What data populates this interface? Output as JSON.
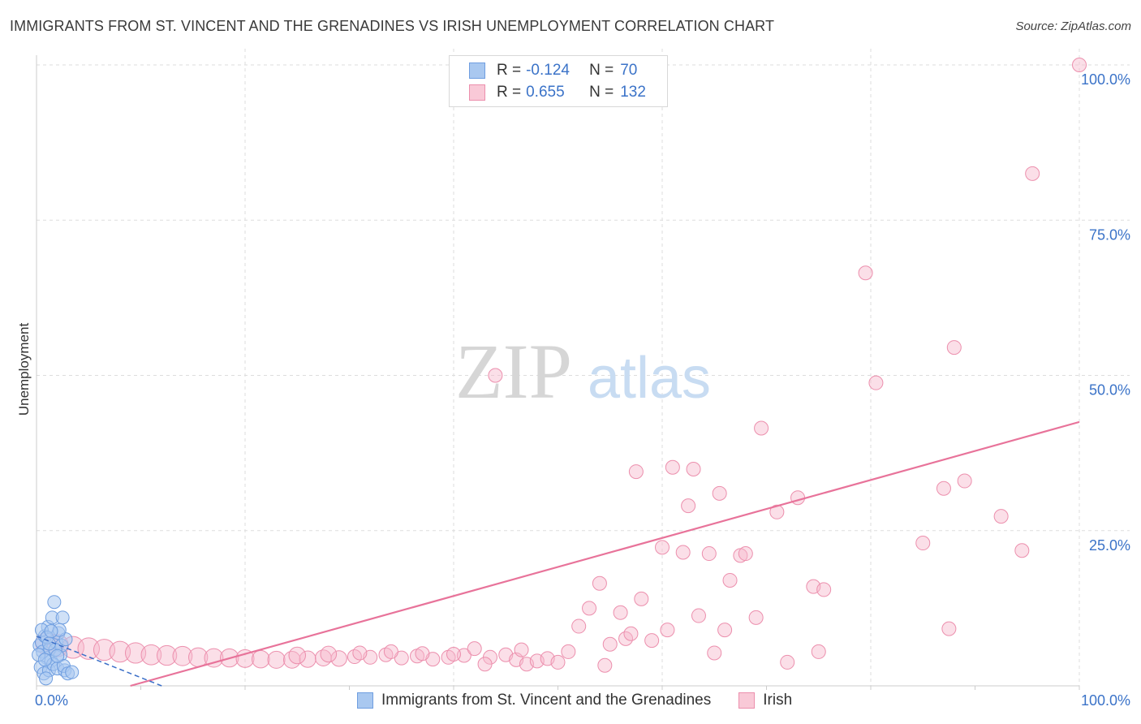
{
  "header": {
    "title": "IMMIGRANTS FROM ST. VINCENT AND THE GRENADINES VS IRISH UNEMPLOYMENT CORRELATION CHART",
    "source": "Source: ZipAtlas.com"
  },
  "watermark": {
    "zip": "ZIP",
    "atlas": "atlas"
  },
  "legend": {
    "series1": {
      "r_label": "R =",
      "r_value": "-0.124",
      "n_label": "N =",
      "n_value": "70"
    },
    "series2": {
      "r_label": "R =",
      "r_value": "0.655",
      "n_label": "N =",
      "n_value": "132"
    }
  },
  "colors": {
    "blue_fill": "#a9c8f0",
    "blue_stroke": "#6f9ee0",
    "blue_line": "#3b6fc8",
    "pink_fill": "#f7b9cc",
    "pink_stroke": "#ec8fad",
    "pink_line": "#e8739a",
    "tick_text": "#3b73c8",
    "grid": "#dddddd"
  },
  "chart_data": {
    "type": "scatter",
    "title": "IMMIGRANTS FROM ST. VINCENT AND THE GRENADINES VS IRISH UNEMPLOYMENT CORRELATION CHART",
    "xlabel": "",
    "ylabel": "Unemployment",
    "xlim": [
      0,
      100
    ],
    "ylim": [
      0,
      100
    ],
    "x_tick_labels": [
      "0.0%",
      "100.0%"
    ],
    "y_tick_labels": [
      "25.0%",
      "50.0%",
      "75.0%",
      "100.0%"
    ],
    "y_ticks": [
      25,
      50,
      75,
      100
    ],
    "grid": true,
    "legend_position": "top-center",
    "series": [
      {
        "name": "Immigrants from St. Vincent and the Grenadines",
        "R": -0.124,
        "N": 70,
        "trendline": {
          "x": [
            0,
            12
          ],
          "y": [
            8.0,
            0.0
          ]
        },
        "points": [
          {
            "x": 0.3,
            "y": 6.5
          },
          {
            "x": 0.5,
            "y": 7.0
          },
          {
            "x": 0.6,
            "y": 5.5
          },
          {
            "x": 0.8,
            "y": 8.0
          },
          {
            "x": 1.0,
            "y": 4.5
          },
          {
            "x": 0.4,
            "y": 3.0
          },
          {
            "x": 0.7,
            "y": 2.0
          },
          {
            "x": 1.1,
            "y": 9.5
          },
          {
            "x": 1.3,
            "y": 6.0
          },
          {
            "x": 1.5,
            "y": 11.0
          },
          {
            "x": 1.4,
            "y": 4.0
          },
          {
            "x": 1.7,
            "y": 13.5
          },
          {
            "x": 1.9,
            "y": 7.0
          },
          {
            "x": 2.1,
            "y": 8.5
          },
          {
            "x": 2.3,
            "y": 5.0
          },
          {
            "x": 2.5,
            "y": 11.0
          },
          {
            "x": 1.2,
            "y": 2.5
          },
          {
            "x": 0.9,
            "y": 1.2
          },
          {
            "x": 1.6,
            "y": 3.5
          },
          {
            "x": 2.0,
            "y": 2.8
          },
          {
            "x": 2.7,
            "y": 2.5
          },
          {
            "x": 2.4,
            "y": 6.5
          },
          {
            "x": 2.8,
            "y": 7.5
          },
          {
            "x": 2.2,
            "y": 9.0
          },
          {
            "x": 0.2,
            "y": 5.0
          },
          {
            "x": 1.8,
            "y": 5.8
          },
          {
            "x": 2.6,
            "y": 3.2
          },
          {
            "x": 3.0,
            "y": 2.0
          },
          {
            "x": 3.4,
            "y": 2.2
          },
          {
            "x": 0.5,
            "y": 9.0
          },
          {
            "x": 1.0,
            "y": 7.8
          },
          {
            "x": 1.4,
            "y": 8.8
          },
          {
            "x": 0.8,
            "y": 4.2
          },
          {
            "x": 1.2,
            "y": 6.8
          },
          {
            "x": 2.0,
            "y": 4.8
          }
        ]
      },
      {
        "name": "Irish",
        "R": 0.655,
        "N": 132,
        "trendline": {
          "x": [
            9,
            100
          ],
          "y": [
            0.0,
            42.5
          ]
        },
        "points": [
          {
            "x": 1.0,
            "y": 6.8
          },
          {
            "x": 2.0,
            "y": 6.5
          },
          {
            "x": 3.5,
            "y": 6.2
          },
          {
            "x": 5.0,
            "y": 6.0
          },
          {
            "x": 6.5,
            "y": 5.8
          },
          {
            "x": 8.0,
            "y": 5.5
          },
          {
            "x": 9.5,
            "y": 5.3
          },
          {
            "x": 11.0,
            "y": 5.0
          },
          {
            "x": 12.5,
            "y": 4.9
          },
          {
            "x": 14.0,
            "y": 4.8
          },
          {
            "x": 15.5,
            "y": 4.6
          },
          {
            "x": 17.0,
            "y": 4.5
          },
          {
            "x": 18.5,
            "y": 4.5
          },
          {
            "x": 20.0,
            "y": 4.4
          },
          {
            "x": 21.5,
            "y": 4.3
          },
          {
            "x": 23.0,
            "y": 4.2
          },
          {
            "x": 24.5,
            "y": 4.2
          },
          {
            "x": 26.0,
            "y": 4.3
          },
          {
            "x": 27.5,
            "y": 4.5
          },
          {
            "x": 29.0,
            "y": 4.4
          },
          {
            "x": 30.5,
            "y": 4.7
          },
          {
            "x": 32.0,
            "y": 4.6
          },
          {
            "x": 33.5,
            "y": 5.0
          },
          {
            "x": 35.0,
            "y": 4.5
          },
          {
            "x": 36.5,
            "y": 4.8
          },
          {
            "x": 38.0,
            "y": 4.3
          },
          {
            "x": 39.5,
            "y": 4.6
          },
          {
            "x": 41.0,
            "y": 4.9
          },
          {
            "x": 42.0,
            "y": 6.0
          },
          {
            "x": 43.5,
            "y": 4.6
          },
          {
            "x": 45.0,
            "y": 5.0
          },
          {
            "x": 46.0,
            "y": 4.2
          },
          {
            "x": 47.0,
            "y": 3.5
          },
          {
            "x": 48.0,
            "y": 4.0
          },
          {
            "x": 49.0,
            "y": 4.4
          },
          {
            "x": 50.0,
            "y": 3.8
          },
          {
            "x": 51.0,
            "y": 5.5
          },
          {
            "x": 52.0,
            "y": 9.6
          },
          {
            "x": 53.0,
            "y": 12.5
          },
          {
            "x": 54.0,
            "y": 16.5
          },
          {
            "x": 54.5,
            "y": 3.3
          },
          {
            "x": 55.0,
            "y": 6.7
          },
          {
            "x": 56.0,
            "y": 11.8
          },
          {
            "x": 56.5,
            "y": 7.6
          },
          {
            "x": 57.0,
            "y": 8.4
          },
          {
            "x": 57.5,
            "y": 34.5
          },
          {
            "x": 58.0,
            "y": 14.0
          },
          {
            "x": 59.0,
            "y": 7.3
          },
          {
            "x": 60.0,
            "y": 22.3
          },
          {
            "x": 60.5,
            "y": 9.0
          },
          {
            "x": 61.0,
            "y": 35.2
          },
          {
            "x": 62.0,
            "y": 21.5
          },
          {
            "x": 62.5,
            "y": 29.0
          },
          {
            "x": 63.0,
            "y": 34.9
          },
          {
            "x": 63.5,
            "y": 11.3
          },
          {
            "x": 64.5,
            "y": 21.3
          },
          {
            "x": 65.0,
            "y": 5.3
          },
          {
            "x": 65.5,
            "y": 31.0
          },
          {
            "x": 66.0,
            "y": 9.0
          },
          {
            "x": 66.5,
            "y": 17.0
          },
          {
            "x": 67.5,
            "y": 21.0
          },
          {
            "x": 68.0,
            "y": 21.3
          },
          {
            "x": 69.0,
            "y": 11.0
          },
          {
            "x": 69.5,
            "y": 41.5
          },
          {
            "x": 71.0,
            "y": 28.0
          },
          {
            "x": 72.0,
            "y": 3.8
          },
          {
            "x": 73.0,
            "y": 30.3
          },
          {
            "x": 74.5,
            "y": 16.0
          },
          {
            "x": 75.0,
            "y": 5.5
          },
          {
            "x": 75.5,
            "y": 15.5
          },
          {
            "x": 79.5,
            "y": 66.5
          },
          {
            "x": 80.5,
            "y": 48.8
          },
          {
            "x": 85.0,
            "y": 23.0
          },
          {
            "x": 87.0,
            "y": 31.8
          },
          {
            "x": 87.5,
            "y": 9.2
          },
          {
            "x": 88.0,
            "y": 54.5
          },
          {
            "x": 89.0,
            "y": 33.0
          },
          {
            "x": 92.5,
            "y": 27.3
          },
          {
            "x": 94.5,
            "y": 21.8
          },
          {
            "x": 95.5,
            "y": 82.5
          },
          {
            "x": 100.0,
            "y": 100.0
          },
          {
            "x": 44.0,
            "y": 50.0
          },
          {
            "x": 34.0,
            "y": 5.5
          },
          {
            "x": 31.0,
            "y": 5.3
          },
          {
            "x": 37.0,
            "y": 5.2
          },
          {
            "x": 40.0,
            "y": 5.1
          },
          {
            "x": 43.0,
            "y": 3.5
          },
          {
            "x": 46.5,
            "y": 5.8
          },
          {
            "x": 28.0,
            "y": 5.1
          },
          {
            "x": 25.0,
            "y": 4.9
          }
        ]
      }
    ]
  }
}
